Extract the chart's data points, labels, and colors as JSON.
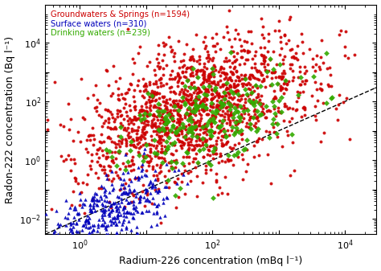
{
  "title": "",
  "xlabel": "Radium-226 concentration (mBq l⁻¹)",
  "ylabel": "Radon-222 concentration (Bq l⁻¹)",
  "legend": [
    {
      "label": "Groundwaters & Springs (n=1594)",
      "color": "#cc0000",
      "marker": "o"
    },
    {
      "label": "Surface waters (n=310)",
      "color": "#0000bb",
      "marker": "^"
    },
    {
      "label": "Drinking waters (n=239)",
      "color": "#33aa00",
      "marker": "D"
    }
  ],
  "xlim": [
    0.3,
    30000
  ],
  "ylim": [
    0.003,
    200000
  ],
  "dashed_line_x": [
    0.15,
    30000
  ],
  "dashed_line_y": [
    0.0015,
    300
  ],
  "background_color": "#ffffff",
  "n_groundwater": 1594,
  "n_surface": 310,
  "n_drinking": 239,
  "seed": 42
}
